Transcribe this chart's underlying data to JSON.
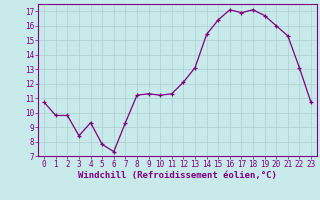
{
  "x": [
    0,
    1,
    2,
    3,
    4,
    5,
    6,
    7,
    8,
    9,
    10,
    11,
    12,
    13,
    14,
    15,
    16,
    17,
    18,
    19,
    20,
    21,
    22,
    23
  ],
  "y": [
    10.7,
    9.8,
    9.8,
    8.4,
    9.3,
    7.8,
    7.3,
    9.3,
    11.2,
    11.3,
    11.2,
    11.3,
    12.1,
    13.1,
    15.4,
    16.4,
    17.1,
    16.9,
    17.1,
    16.7,
    16.0,
    15.3,
    13.1,
    10.7
  ],
  "line_color": "#800080",
  "marker_color": "#800080",
  "bg_color": "#c8eaea",
  "grid_color": "#a8d0d0",
  "axis_color": "#800080",
  "xlabel": "Windchill (Refroidissement éolien,°C)",
  "xlim": [
    -0.5,
    23.5
  ],
  "ylim": [
    7,
    17.5
  ],
  "yticks": [
    7,
    8,
    9,
    10,
    11,
    12,
    13,
    14,
    15,
    16,
    17
  ],
  "xticks": [
    0,
    1,
    2,
    3,
    4,
    5,
    6,
    7,
    8,
    9,
    10,
    11,
    12,
    13,
    14,
    15,
    16,
    17,
    18,
    19,
    20,
    21,
    22,
    23
  ],
  "xlabel_fontsize": 6.5,
  "tick_fontsize": 5.5,
  "line_width": 0.9,
  "marker_size": 2.5
}
